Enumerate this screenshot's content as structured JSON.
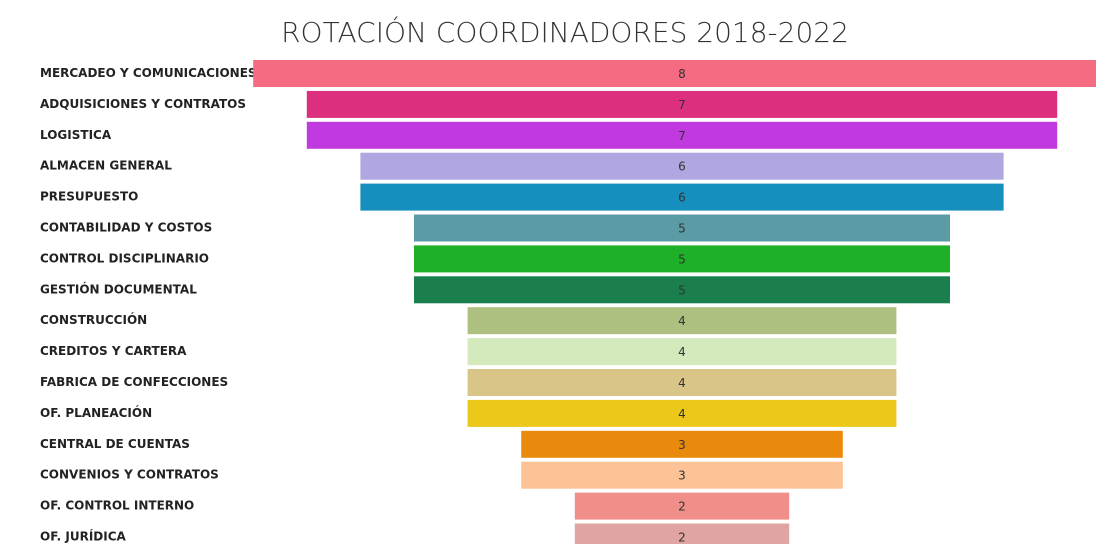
{
  "chart_data": {
    "type": "funnel",
    "title": "ROTACIÓN COORDINADORES 2018-2022",
    "categories": [
      "MERCADEO Y COMUNICACIONES",
      "ADQUISICIONES Y CONTRATOS",
      "LOGISTICA",
      "ALMACEN GENERAL",
      "PRESUPUESTO",
      "CONTABILIDAD Y COSTOS",
      "CONTROL DISCIPLINARIO",
      "GESTIÓN DOCUMENTAL",
      "CONSTRUCCIÓN",
      "CREDITOS Y CARTERA",
      "FABRICA DE CONFECCIONES",
      "OF. PLANEACIÓN",
      "CENTRAL DE CUENTAS",
      "CONVENIOS Y CONTRATOS",
      "OF. CONTROL INTERNO",
      "OF. JURÍDICA"
    ],
    "values": [
      8,
      7,
      7,
      6,
      6,
      5,
      5,
      5,
      4,
      4,
      4,
      4,
      3,
      3,
      2,
      2
    ],
    "colors": [
      "#f46b82",
      "#dc2f7e",
      "#c13ae0",
      "#b0a6e0",
      "#168fbf",
      "#5b9ba6",
      "#1fb02a",
      "#1a7f4c",
      "#aec080",
      "#d4eabd",
      "#d9c587",
      "#ebc81a",
      "#ea8a0d",
      "#fdc296",
      "#f08f8a",
      "#e0a4a2"
    ]
  }
}
